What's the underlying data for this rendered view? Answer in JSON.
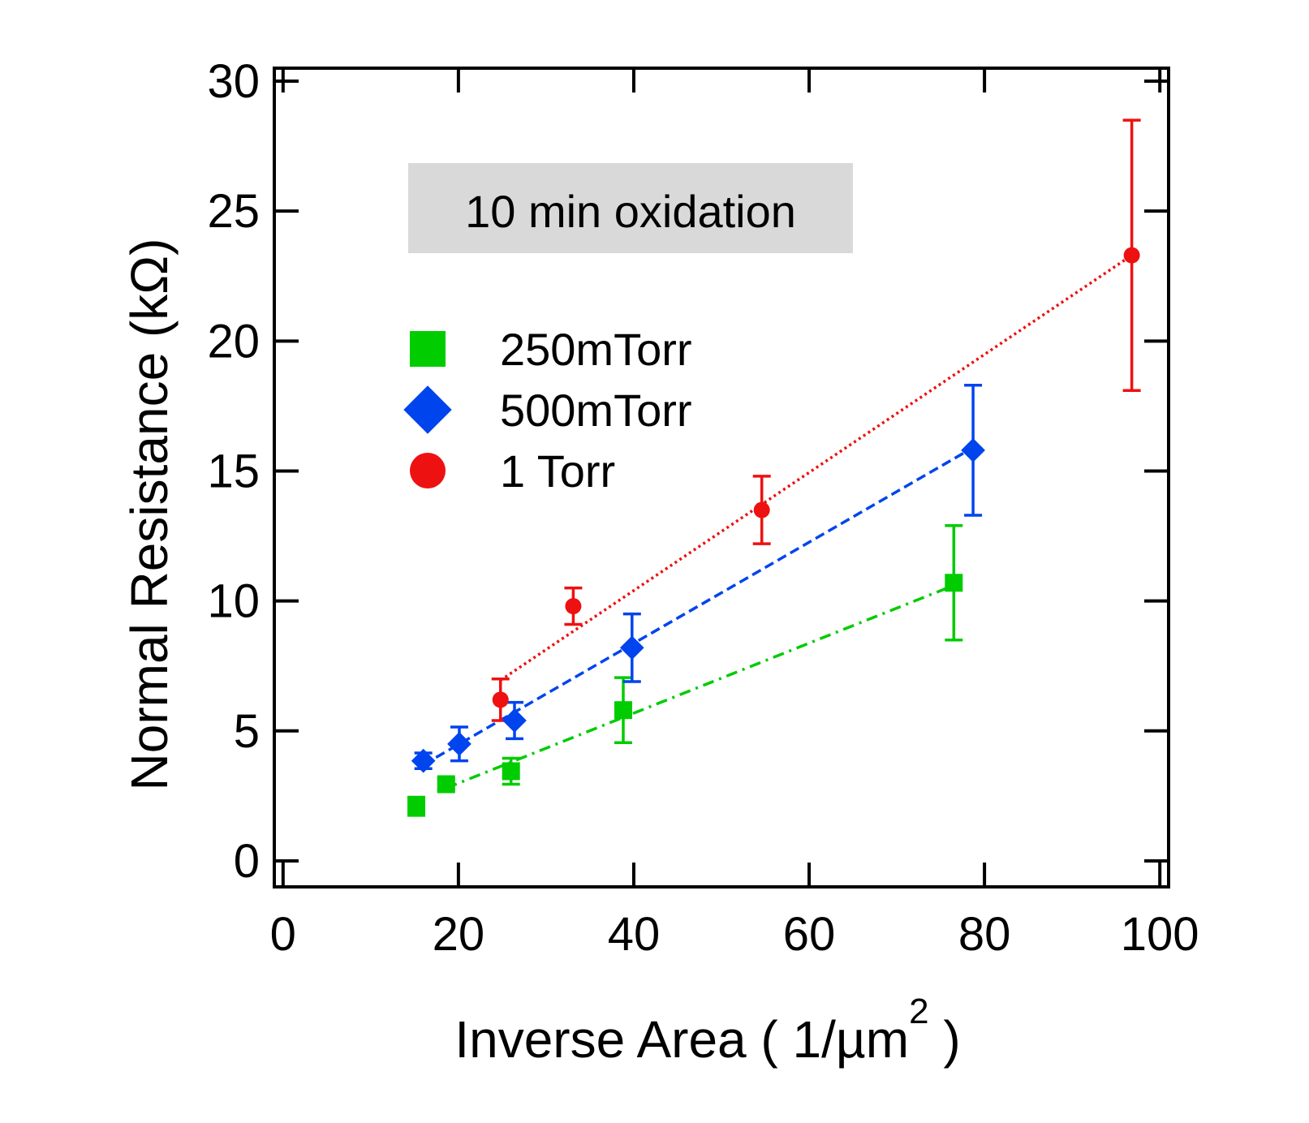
{
  "chart_data": {
    "type": "scatter",
    "title": "",
    "xlabel": "Inverse Area ( 1/µm",
    "xlabel_superscript": "2",
    "xlabel_close": " )",
    "ylabel": "Normal Resistance (kΩ)",
    "xlim": [
      -1,
      101
    ],
    "ylim": [
      -1,
      30.5
    ],
    "xticks": [
      0,
      20,
      40,
      60,
      80,
      100
    ],
    "yticks": [
      0,
      5,
      10,
      15,
      20,
      25,
      30
    ],
    "xtick_labels": [
      "0",
      "20",
      "40",
      "60",
      "80",
      "100"
    ],
    "ytick_labels": [
      "0",
      "5",
      "10",
      "15",
      "20",
      "25",
      "30"
    ],
    "grid": false,
    "legend_position": "upper-left",
    "annotation": "10 min oxidation",
    "series": [
      {
        "name": "250mTorr",
        "marker": "square",
        "color": "#00cc00",
        "line_style": "dash-dot",
        "points": [
          {
            "x": 15.2,
            "y": 2.1,
            "err": 0.35
          },
          {
            "x": 18.6,
            "y": 2.95,
            "err": 0.2
          },
          {
            "x": 26.0,
            "y": 3.45,
            "err": 0.5
          },
          {
            "x": 38.8,
            "y": 5.8,
            "err": 1.25
          },
          {
            "x": 76.5,
            "y": 10.7,
            "err": 2.2
          }
        ],
        "fit": [
          [
            18.6,
            2.8
          ],
          [
            76.5,
            10.6
          ]
        ]
      },
      {
        "name": "500mTorr",
        "marker": "diamond",
        "color": "#0044ee",
        "line_style": "dashed",
        "points": [
          {
            "x": 16.0,
            "y": 3.85,
            "err": 0.3
          },
          {
            "x": 20.1,
            "y": 4.5,
            "err": 0.65
          },
          {
            "x": 26.4,
            "y": 5.4,
            "err": 0.7
          },
          {
            "x": 39.8,
            "y": 8.2,
            "err": 1.3
          },
          {
            "x": 78.7,
            "y": 15.8,
            "err": 2.5
          }
        ],
        "fit": [
          [
            16.0,
            3.7
          ],
          [
            78.7,
            15.9
          ]
        ]
      },
      {
        "name": "1 Torr",
        "marker": "circle",
        "color": "#ee1111",
        "line_style": "dotted",
        "points": [
          {
            "x": 24.8,
            "y": 6.2,
            "err": 0.8
          },
          {
            "x": 33.1,
            "y": 9.8,
            "err": 0.7
          },
          {
            "x": 54.6,
            "y": 13.5,
            "err": 1.3
          },
          {
            "x": 96.8,
            "y": 23.3,
            "err": 5.2
          }
        ],
        "fit": [
          [
            24.8,
            6.95
          ],
          [
            96.8,
            23.3
          ]
        ]
      }
    ]
  }
}
